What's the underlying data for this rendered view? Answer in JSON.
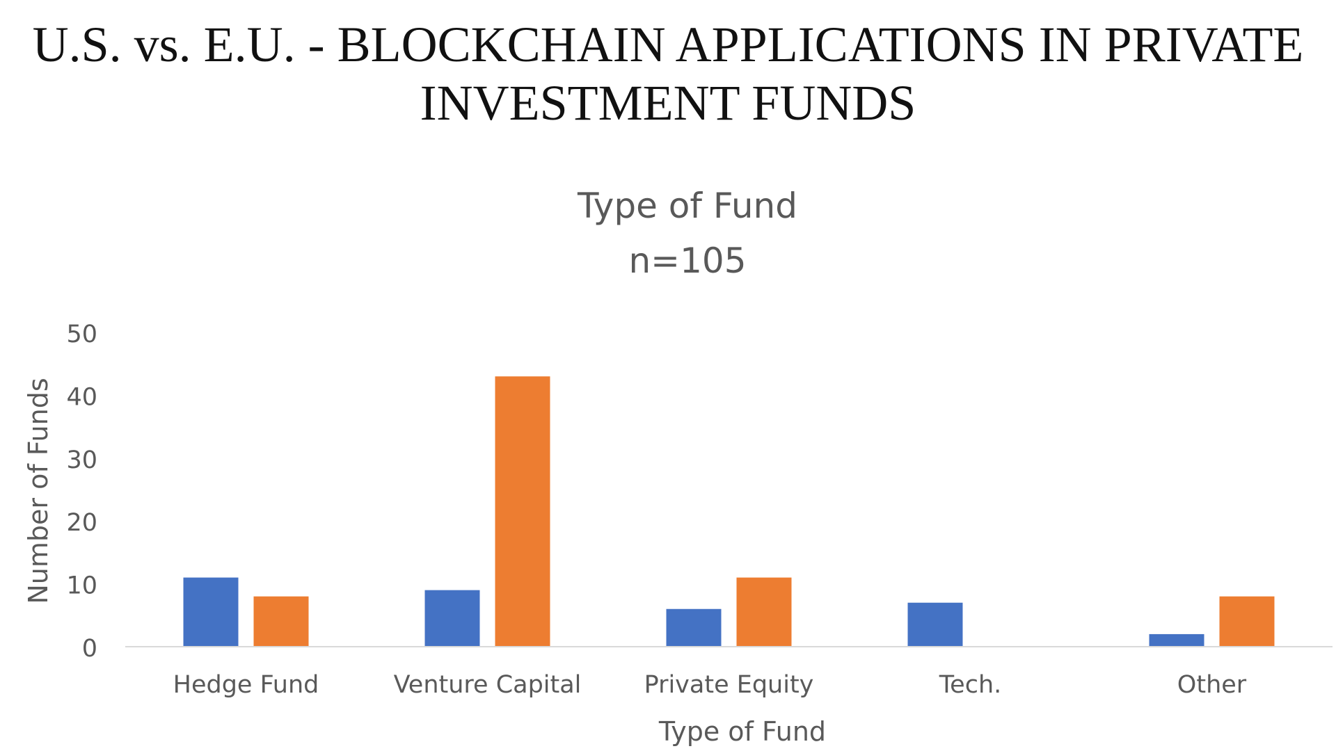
{
  "header": {
    "title_line1": "U.S. vs. E.U. - BLOCKCHAIN APPLICATIONS IN PRIVATE",
    "title_line2": "INVESTMENT FUNDS"
  },
  "chart_data": {
    "type": "bar",
    "title": "Type of Fund",
    "subtitle": "n=105",
    "xlabel": "Type of Fund",
    "ylabel": "Number of Funds",
    "categories": [
      "Hedge Fund",
      "Venture Capital",
      "Private Equity",
      "Tech.",
      "Other"
    ],
    "series": [
      {
        "color": "#4472C4",
        "values": [
          11,
          9,
          6,
          7,
          2
        ]
      },
      {
        "color": "#ED7D31",
        "values": [
          8,
          43,
          11,
          0,
          8
        ]
      }
    ],
    "yticks": [
      "0",
      "10",
      "20",
      "30",
      "40",
      "50"
    ],
    "ylim": [
      0,
      50
    ],
    "grid": false,
    "legend": "none"
  }
}
